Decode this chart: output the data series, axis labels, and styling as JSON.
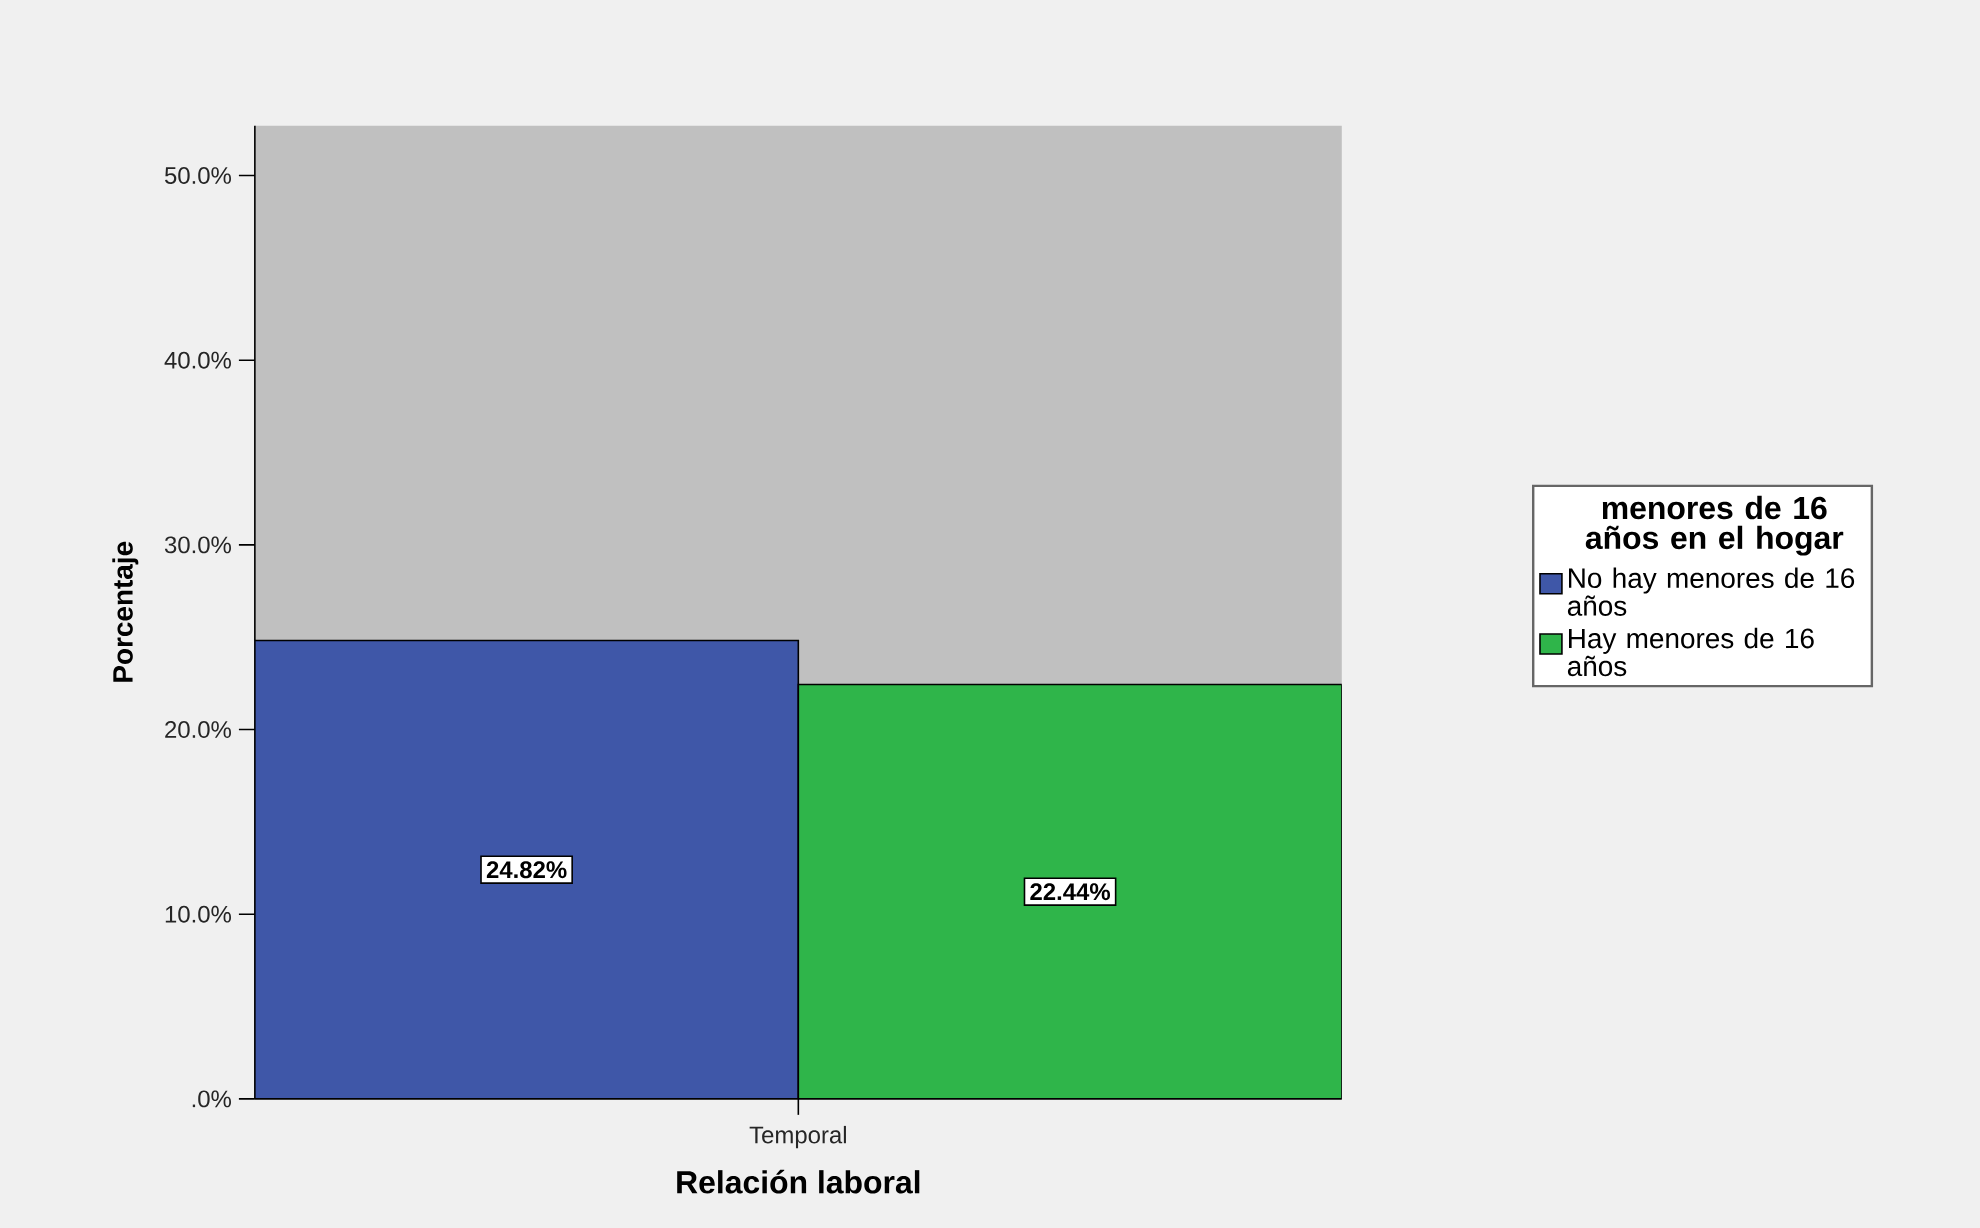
{
  "chart_data": {
    "type": "bar",
    "xlabel": "Relación laboral",
    "ylabel": "Porcentaje",
    "legend_title": "menores de 16 años en el hogar",
    "legend": "right",
    "categories": [
      "Temporal"
    ],
    "series": [
      {
        "name": "No hay menores de 16 años",
        "color": "#3f57a8",
        "values": [
          24.82
        ],
        "value_labels": [
          "24.82%"
        ]
      },
      {
        "name": "Hay menores de 16 años",
        "color": "#2fb54a",
        "values": [
          22.44
        ],
        "value_labels": [
          "22.44%"
        ]
      }
    ],
    "ylim": [
      0,
      52.7
    ],
    "yticks": [
      {
        "value": 0,
        "label": ".0%"
      },
      {
        "value": 10,
        "label": "10.0%"
      },
      {
        "value": 20,
        "label": "20.0%"
      },
      {
        "value": 30,
        "label": "30.0%"
      },
      {
        "value": 40,
        "label": "40.0%"
      },
      {
        "value": 50,
        "label": "50.0%"
      }
    ]
  }
}
